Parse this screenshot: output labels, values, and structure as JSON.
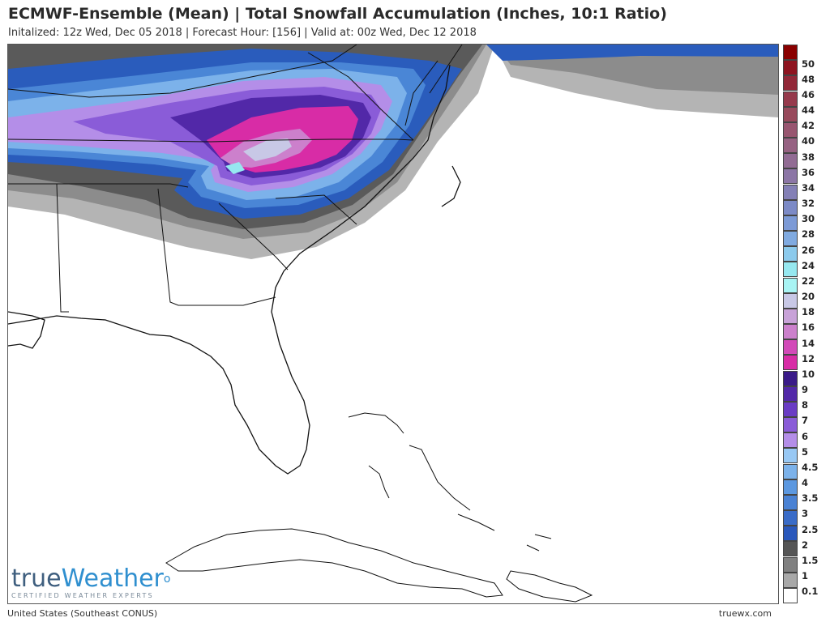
{
  "header": {
    "title": "ECMWF-Ensemble (Mean) | Total Snowfall Accumulation (Inches, 10:1 Ratio)",
    "subtitle": "Initalized: 12z Wed, Dec 05 2018 | Forecast Hour: [156] | Valid at: 00z Wed, Dec 12 2018"
  },
  "footer": {
    "region": "United States (Southeast CONUS)",
    "site": "truewx.com"
  },
  "logo": {
    "part1": "true",
    "part2": "Weather",
    "tagline": "CERTIFIED WEATHER EXPERTS"
  },
  "legend": [
    {
      "label": "50",
      "color": "#8a0000"
    },
    {
      "label": "48",
      "color": "#8e1420"
    },
    {
      "label": "46",
      "color": "#922838"
    },
    {
      "label": "44",
      "color": "#963a4c"
    },
    {
      "label": "42",
      "color": "#984a5c"
    },
    {
      "label": "40",
      "color": "#985670"
    },
    {
      "label": "38",
      "color": "#966282"
    },
    {
      "label": "36",
      "color": "#926c94"
    },
    {
      "label": "34",
      "color": "#8c76a6"
    },
    {
      "label": "32",
      "color": "#8480b6"
    },
    {
      "label": "30",
      "color": "#7c8ac6"
    },
    {
      "label": "28",
      "color": "#7c9ad6"
    },
    {
      "label": "26",
      "color": "#80aae0"
    },
    {
      "label": "24",
      "color": "#8ccaec"
    },
    {
      "label": "22",
      "color": "#96e8f0"
    },
    {
      "label": "20",
      "color": "#a8f4f4"
    },
    {
      "label": "18",
      "color": "#c8c8e6"
    },
    {
      "label": "16",
      "color": "#c8a2d8"
    },
    {
      "label": "14",
      "color": "#cc80cc"
    },
    {
      "label": "12",
      "color": "#d24ab8"
    },
    {
      "label": "10",
      "color": "#d82ca6"
    },
    {
      "label": "9",
      "color": "#3a1a88"
    },
    {
      "label": "8",
      "color": "#5228a8"
    },
    {
      "label": "7",
      "color": "#6a3cc4"
    },
    {
      "label": "6",
      "color": "#8a5cd8"
    },
    {
      "label": "5",
      "color": "#b48ee8"
    },
    {
      "label": "4.5",
      "color": "#98c8f4"
    },
    {
      "label": "4",
      "color": "#7cb2ea"
    },
    {
      "label": "3.5",
      "color": "#5c98e0"
    },
    {
      "label": "3",
      "color": "#4a82d4"
    },
    {
      "label": "2.5",
      "color": "#3a6cc8"
    },
    {
      "label": "2",
      "color": "#2a58bc"
    },
    {
      "label": "1.5",
      "color": "#555555"
    },
    {
      "label": "1",
      "color": "#808080"
    },
    {
      "label": "0.1",
      "color": "#a8a8a8"
    },
    {
      "label": "",
      "color": "#ffffff"
    }
  ]
}
